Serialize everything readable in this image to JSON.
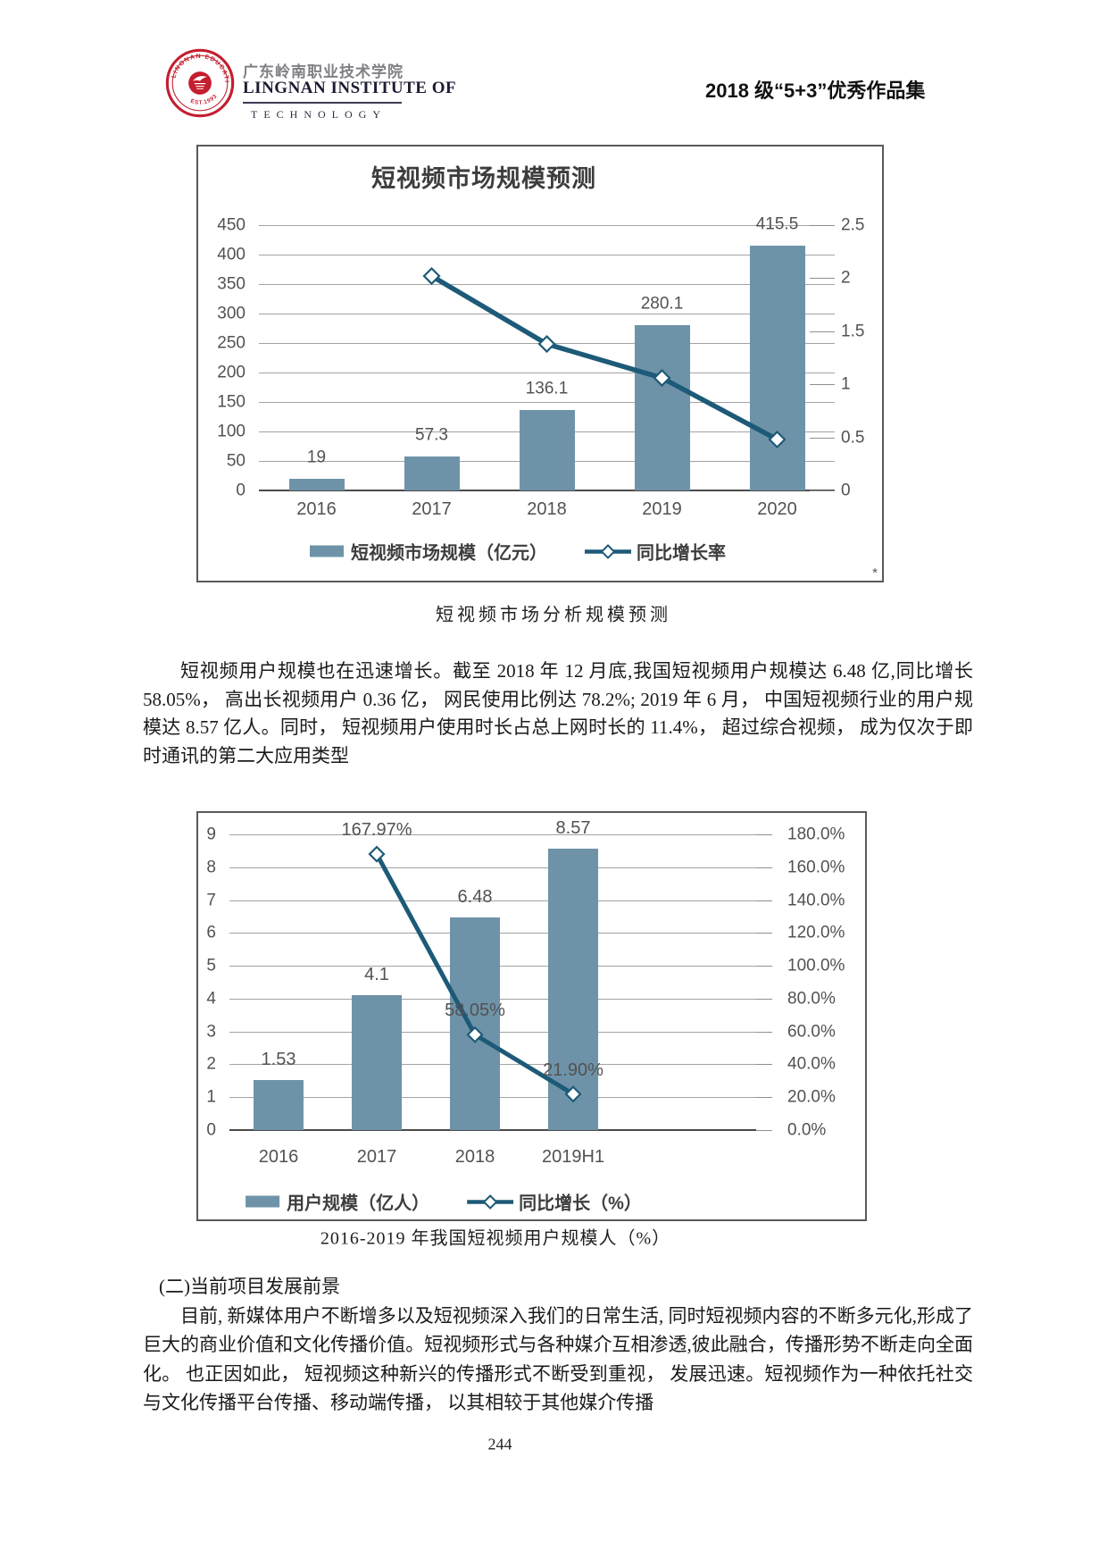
{
  "header": {
    "university_cn": "广东岭南职业技术学院",
    "university_en1": "LINGNAN INSTITUTE OF",
    "university_en2": "TECHNOLOGY",
    "seal_text_top": "LINGNAN EDUCATION",
    "seal_text_bottom": "EST.1993",
    "collection_title": "2018 级“5+3”优秀作品集"
  },
  "chart_data": [
    {
      "type": "bar+line",
      "title": "短视频市场规模预测",
      "categories": [
        "2016",
        "2017",
        "2018",
        "2019",
        "2020"
      ],
      "bar_series": {
        "name": "短视频市场规模（亿元）",
        "values": [
          19,
          57.3,
          136.1,
          280.1,
          415.5
        ],
        "labels": [
          "19",
          "57.3",
          "136.1",
          "280.1",
          "415.5"
        ]
      },
      "line_series": {
        "name": "同比增长率",
        "values": [
          null,
          2.02,
          1.38,
          1.06,
          0.48
        ],
        "labels": [
          null,
          null,
          null,
          null,
          null
        ]
      },
      "left_axis": {
        "min": 0,
        "max": 450,
        "ticks": [
          "450",
          "400",
          "350",
          "300",
          "250",
          "200",
          "150",
          "100",
          "50",
          "0"
        ]
      },
      "right_axis": {
        "min": 0,
        "max": 2.5,
        "ticks": [
          "2.5",
          "2",
          "1.5",
          "1",
          "0.5",
          "0"
        ]
      },
      "grid": true,
      "legend_position": "bottom",
      "footnote": "*"
    },
    {
      "type": "bar+line",
      "title": "",
      "categories": [
        "2016",
        "2017",
        "2018",
        "2019H1"
      ],
      "bar_series": {
        "name": "用户规模（亿人）",
        "values": [
          1.53,
          4.1,
          6.48,
          8.57
        ],
        "labels": [
          "1.53",
          "4.1",
          "6.48",
          "8.57"
        ]
      },
      "line_series": {
        "name": "同比增长（%）",
        "values": [
          null,
          167.97,
          58.05,
          21.9
        ],
        "labels": [
          null,
          "167.97%",
          "58.05%",
          "21.90%"
        ]
      },
      "left_axis": {
        "min": 0,
        "max": 9,
        "ticks": [
          "9",
          "8",
          "7",
          "6",
          "5",
          "4",
          "3",
          "2",
          "1",
          "0"
        ]
      },
      "right_axis": {
        "min": 0,
        "max": 180,
        "ticks": [
          "180.0%",
          "160.0%",
          "140.0%",
          "120.0%",
          "100.0%",
          "80.0%",
          "60.0%",
          "40.0%",
          "20.0%",
          "0.0%"
        ]
      },
      "grid": true,
      "legend_position": "bottom",
      "footnote": ""
    }
  ],
  "captions": {
    "chart1": "短视频市场分析规模预测",
    "chart2": "2016-2019 年我国短视频用户规模人（%）"
  },
  "body": {
    "p1": "短视频用户规模也在迅速增长。截至 2018 年 12 月底,我国短视频用户规模达 6.48 亿,同比增长 58.05%， 高出长视频用户 0.36 亿， 网民使用比例达 78.2%; 2019 年 6 月， 中国短视频行业的用户规模达 8.57 亿人。同时， 短视频用户使用时长占总上网时长的 11.4%， 超过综合视频， 成为仅次于即时通讯的第二大应用类型",
    "heading2": "(二)当前项目发展前景",
    "p2": "目前, 新媒体用户不断增多以及短视频深入我们的日常生活, 同时短视频内容的不断多元化,形成了巨大的商业价值和文化传播价值。短视频形式与各种媒介互相渗透,彼此融合，传播形势不断走向全面化。 也正因如此， 短视频这种新兴的传播形式不断受到重视， 发展迅速。短视频作为一种依托社交与文化传播平台传播、移动端传播， 以其相较于其他媒介传播"
  },
  "footer": {
    "page_number": "244"
  },
  "colors": {
    "bar": "#6E93A8",
    "line": "#1D5A78",
    "accent_red": "#C41E2F"
  }
}
